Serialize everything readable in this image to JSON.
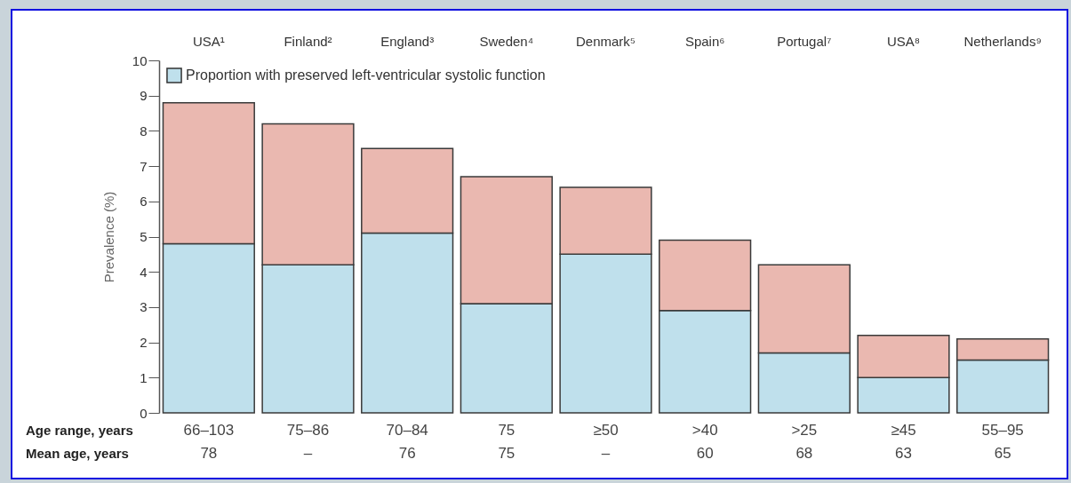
{
  "chart_data": {
    "type": "bar",
    "stacked": true,
    "ylabel": "Prevalence (%)",
    "categories": [
      "USA¹",
      "Finland²",
      "England³",
      "Sweden⁴",
      "Denmark⁵",
      "Spain⁶",
      "Portugal⁷",
      "USA⁸",
      "Netherlands⁹"
    ],
    "series": [
      {
        "name": "Proportion with preserved left-ventricular systolic function",
        "color": "#bfe0ec",
        "values": [
          4.8,
          4.2,
          5.1,
          3.1,
          4.5,
          2.9,
          1.7,
          1.0,
          1.5
        ]
      },
      {
        "color": "#eab8b0",
        "values": [
          4.0,
          4.0,
          2.4,
          3.6,
          1.9,
          2.0,
          2.5,
          1.2,
          0.6
        ]
      }
    ],
    "ylim": [
      0,
      10
    ],
    "yticks": [
      0,
      1,
      2,
      3,
      4,
      5,
      6,
      7,
      8,
      9,
      10
    ],
    "grid": false,
    "legend": "top left",
    "annotations": [
      "Age range, years",
      "66–103",
      "75–86",
      "70–84",
      "75",
      "≥50",
      ">40",
      ">25",
      "≥45",
      "55–95",
      "Mean age, years",
      "78",
      "–",
      "76",
      "75",
      "–",
      "60",
      "68",
      "63",
      "65"
    ]
  }
}
